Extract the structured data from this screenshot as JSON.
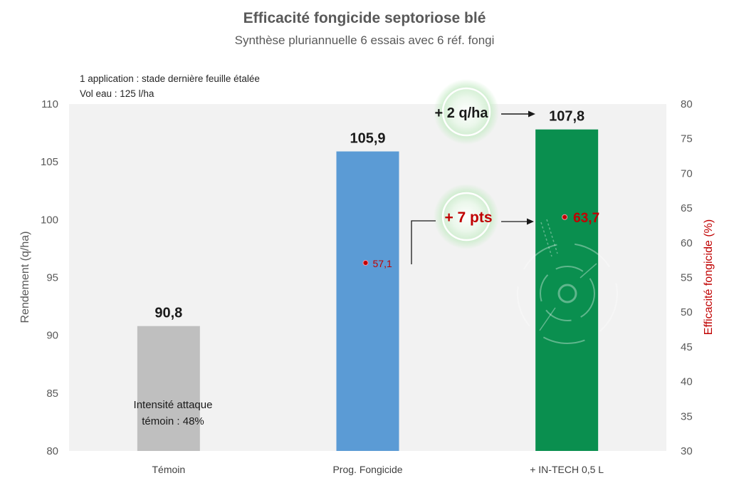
{
  "chart_data": {
    "type": "bar",
    "title": "Efficacité fongicide septoriose blé",
    "subtitle": "Synthèse pluriannuelle 6 essais avec 6 réf. fongi",
    "notes": [
      "1 application : stade dernière feuille étalée",
      "Vol eau : 125 l/ha"
    ],
    "categories": [
      "Témoin",
      "Prog. Fongicide",
      "+ IN-TECH 0,5 L"
    ],
    "series": [
      {
        "name": "Rendement (q/ha)",
        "axis": "left",
        "values": [
          90.8,
          105.9,
          107.8
        ],
        "labels": [
          "90,8",
          "105,9",
          "107,8"
        ],
        "colors": [
          "#BFBFBF",
          "#5B9BD5",
          "#0A8F4F"
        ]
      },
      {
        "name": "Efficacité fongicide (%)",
        "axis": "right",
        "type": "scatter",
        "values": [
          null,
          57.1,
          63.7
        ],
        "labels": [
          "",
          "57,1",
          "63,7"
        ],
        "color": "#C00000"
      }
    ],
    "ylabel": "Rendement (q/ha)",
    "ylim": [
      80,
      110
    ],
    "yticks": [
      "80",
      "85",
      "90",
      "95",
      "100",
      "105",
      "110"
    ],
    "y2label": "Efficacité fongicide (%)",
    "y2lim": [
      30,
      80
    ],
    "y2ticks": [
      "30",
      "35",
      "40",
      "45",
      "50",
      "55",
      "60",
      "65",
      "70",
      "75",
      "80"
    ],
    "annotations": {
      "inner_label": [
        "Intensité attaque",
        "témoin : 48%"
      ],
      "yield_gain": "+ 2 q/ha",
      "efficacy_gain": "+ 7 pts"
    },
    "plot_background": "#F2F2F2",
    "grid": false,
    "legend": "none"
  }
}
